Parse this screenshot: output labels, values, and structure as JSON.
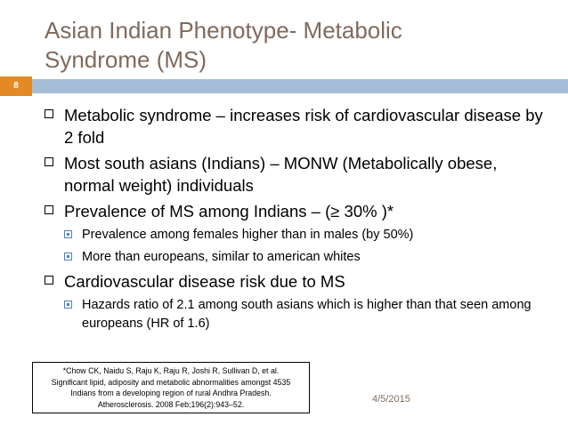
{
  "slide": {
    "title_lines": [
      "Asian Indian Phenotype- Metabolic",
      "Syndrome (MS)"
    ],
    "slide_number": "8",
    "date": "4/5/2015",
    "colors": {
      "title": "#7f6a5b",
      "rule_bar": "#a6bdd7",
      "slide_number_badge": "#e28a25",
      "sub_bullet": "#4f81bd"
    }
  },
  "bullets": [
    {
      "text": "Metabolic syndrome – increases risk of cardiovascular disease by 2 fold",
      "sub": []
    },
    {
      "text": "Most south asians (Indians) – MONW (Metabolically obese, normal weight) individuals",
      "sub": []
    },
    {
      "text": "Prevalence of MS among Indians – (≥ 30% )*",
      "sub": [
        "Prevalence among females higher than in males (by 50%)",
        "More than europeans, similar to american whites"
      ]
    },
    {
      "text": "Cardiovascular disease risk due to MS",
      "sub": [
        "Hazards ratio of 2.1 among south asians which is higher than that seen among europeans (HR of 1.6)"
      ]
    }
  ],
  "citation": {
    "lines": [
      "*Chow CK, Naidu S, Raju K, Raju R, Joshi R, Sullivan D, et al.",
      "Significant lipid, adiposity and metabolic abnormalities amongst 4535",
      "Indians from a developing region of rural Andhra Pradesh.",
      "Atherosclerosis. 2008 Feb;196(2):943–52."
    ]
  }
}
